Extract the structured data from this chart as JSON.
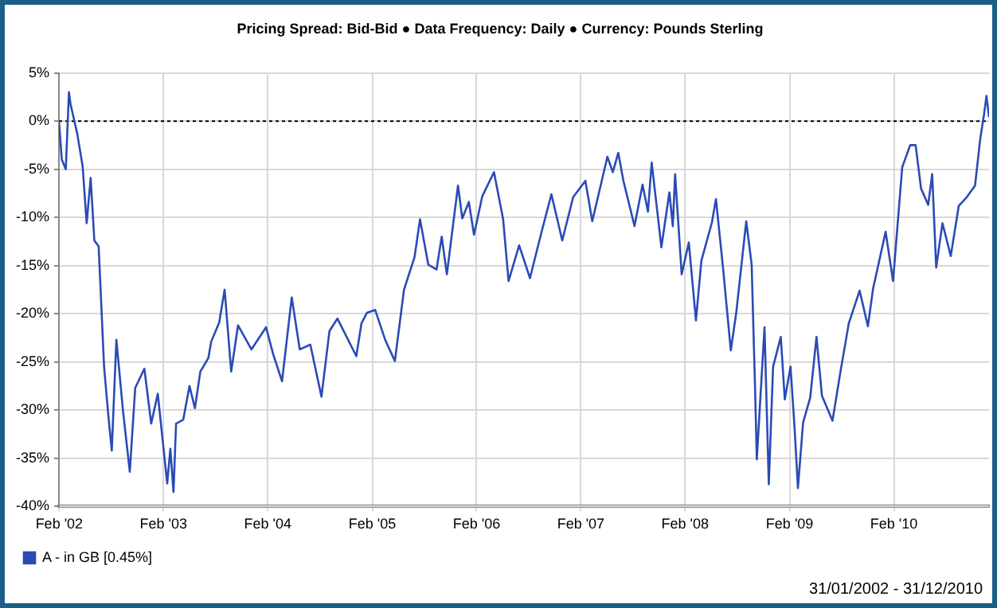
{
  "chart_data": {
    "type": "line",
    "title": "Pricing Spread: Bid-Bid ● Data Frequency: Daily ● Currency: Pounds Sterling",
    "annotations": [
      "31/01/2002 - 31/12/2010"
    ],
    "x": [
      "2002-01-31",
      "2002-02-10",
      "2002-02-24",
      "2002-03-07",
      "2002-03-13",
      "2002-04-05",
      "2002-04-24",
      "2002-05-08",
      "2002-05-22",
      "2002-06-04",
      "2002-06-19",
      "2002-07-08",
      "2002-07-23",
      "2002-08-04",
      "2002-08-20",
      "2002-09-12",
      "2002-10-06",
      "2002-10-25",
      "2002-11-26",
      "2002-12-20",
      "2003-01-12",
      "2003-02-14",
      "2003-02-25",
      "2003-03-08",
      "2003-03-17",
      "2003-04-11",
      "2003-05-03",
      "2003-05-22",
      "2003-06-10",
      "2003-07-08",
      "2003-07-18",
      "2003-08-15",
      "2003-09-03",
      "2003-09-26",
      "2003-10-20",
      "2003-12-06",
      "2004-01-26",
      "2004-02-20",
      "2004-03-22",
      "2004-04-25",
      "2004-05-23",
      "2004-06-29",
      "2004-08-07",
      "2004-09-04",
      "2004-10-02",
      "2004-12-07",
      "2004-12-25",
      "2005-01-13",
      "2005-02-11",
      "2005-03-18",
      "2005-04-21",
      "2005-05-23",
      "2005-06-29",
      "2005-07-18",
      "2005-08-16",
      "2005-09-14",
      "2005-10-02",
      "2005-10-20",
      "2005-11-28",
      "2005-12-13",
      "2006-01-05",
      "2006-01-23",
      "2006-02-21",
      "2006-04-03",
      "2006-05-05",
      "2006-05-24",
      "2006-06-30",
      "2006-08-07",
      "2006-09-14",
      "2006-10-21",
      "2006-11-28",
      "2007-01-05",
      "2007-02-17",
      "2007-03-13",
      "2007-05-05",
      "2007-05-24",
      "2007-06-12",
      "2007-06-30",
      "2007-08-08",
      "2007-09-05",
      "2007-09-24",
      "2007-10-07",
      "2007-11-10",
      "2007-12-08",
      "2007-12-20",
      "2007-12-28",
      "2008-01-20",
      "2008-02-14",
      "2008-03-10",
      "2008-03-29",
      "2008-05-05",
      "2008-05-19",
      "2008-06-13",
      "2008-07-10",
      "2008-07-29",
      "2008-09-02",
      "2008-09-21",
      "2008-10-03",
      "2008-10-09",
      "2008-11-05",
      "2008-11-20",
      "2008-12-05",
      "2009-01-01",
      "2009-01-15",
      "2009-02-04",
      "2009-02-18",
      "2009-03-02",
      "2009-03-20",
      "2009-04-14",
      "2009-05-06",
      "2009-05-25",
      "2009-07-01",
      "2009-07-29",
      "2009-08-27",
      "2009-10-04",
      "2009-11-02",
      "2009-11-20",
      "2010-01-03",
      "2010-01-29",
      "2010-03-02",
      "2010-03-30",
      "2010-04-18",
      "2010-05-07",
      "2010-06-01",
      "2010-06-15",
      "2010-06-29",
      "2010-07-21",
      "2010-08-19",
      "2010-09-16",
      "2010-10-14",
      "2010-11-12",
      "2010-11-30",
      "2010-12-13",
      "2010-12-22",
      "2010-12-31"
    ],
    "series": [
      {
        "name": "A - in GB [0.45%]",
        "color": "#2a4bb5",
        "values": [
          0,
          -4,
          -5,
          3,
          1.7,
          -1.3,
          -4.7,
          -10.6,
          -5.9,
          -12.4,
          -13,
          -25.5,
          -30.6,
          -34.2,
          -22.7,
          -30,
          -36.4,
          -27.7,
          -25.7,
          -31.4,
          -28.3,
          -37.6,
          -34,
          -38.5,
          -31.4,
          -31,
          -27.5,
          -29.8,
          -26,
          -24.6,
          -22.9,
          -20.9,
          -17.5,
          -26,
          -21.2,
          -23.7,
          -21.4,
          -24.2,
          -27,
          -18.3,
          -23.7,
          -23.2,
          -28.6,
          -21.8,
          -20.5,
          -24.4,
          -21,
          -19.9,
          -19.6,
          -22.7,
          -24.9,
          -17.5,
          -14.1,
          -10.2,
          -14.9,
          -15.4,
          -12,
          -15.9,
          -6.7,
          -10.1,
          -8.4,
          -11.8,
          -7.8,
          -5.3,
          -10.2,
          -16.6,
          -12.9,
          -16.3,
          -11.8,
          -7.6,
          -12.4,
          -7.9,
          -6.2,
          -10.4,
          -3.7,
          -5.3,
          -3.3,
          -6.2,
          -10.9,
          -6.6,
          -9.4,
          -4.3,
          -13.1,
          -7.4,
          -10.9,
          -5.5,
          -15.9,
          -12.6,
          -20.7,
          -14.5,
          -10.5,
          -8.1,
          -15.3,
          -23.8,
          -19.9,
          -10.4,
          -14.9,
          -27.8,
          -35.1,
          -21.4,
          -37.7,
          -25.5,
          -22.4,
          -28.9,
          -25.5,
          -31.7,
          -38.1,
          -31.3,
          -28.7,
          -22.4,
          -28.5,
          -31.1,
          -26,
          -21,
          -17.6,
          -21.3,
          -17.4,
          -11.5,
          -16.6,
          -4.8,
          -2.5,
          -2.5,
          -7,
          -8.7,
          -5.5,
          -15.2,
          -10.6,
          -14,
          -8.8,
          -7.9,
          -6.7,
          -1.9,
          0.6,
          2.6,
          0.4
        ]
      }
    ],
    "xlim": [
      "2002-01-31",
      "2010-12-31"
    ],
    "xticks": [
      {
        "value": "2002-02-01",
        "label": "Feb '02"
      },
      {
        "value": "2003-02-01",
        "label": "Feb '03"
      },
      {
        "value": "2004-02-01",
        "label": "Feb '04"
      },
      {
        "value": "2005-02-01",
        "label": "Feb '05"
      },
      {
        "value": "2006-02-01",
        "label": "Feb '06"
      },
      {
        "value": "2007-02-01",
        "label": "Feb '07"
      },
      {
        "value": "2008-02-01",
        "label": "Feb '08"
      },
      {
        "value": "2009-02-01",
        "label": "Feb '09"
      },
      {
        "value": "2010-02-01",
        "label": "Feb '10"
      }
    ],
    "ylim": [
      -40,
      5
    ],
    "yticks": [
      {
        "value": -40,
        "label": "-40%"
      },
      {
        "value": -35,
        "label": "-35%"
      },
      {
        "value": -30,
        "label": "-30%"
      },
      {
        "value": -25,
        "label": "-25%"
      },
      {
        "value": -20,
        "label": "-20%"
      },
      {
        "value": -15,
        "label": "-15%"
      },
      {
        "value": -10,
        "label": "-10%"
      },
      {
        "value": -5,
        "label": "-5%"
      },
      {
        "value": 0,
        "label": "0%"
      },
      {
        "value": 5,
        "label": "5%"
      }
    ],
    "ref_lines": [
      {
        "axis": "y",
        "value": 0,
        "color": "#000000",
        "line_style": "dotted"
      }
    ],
    "grid": true,
    "legend": "bottom left"
  }
}
